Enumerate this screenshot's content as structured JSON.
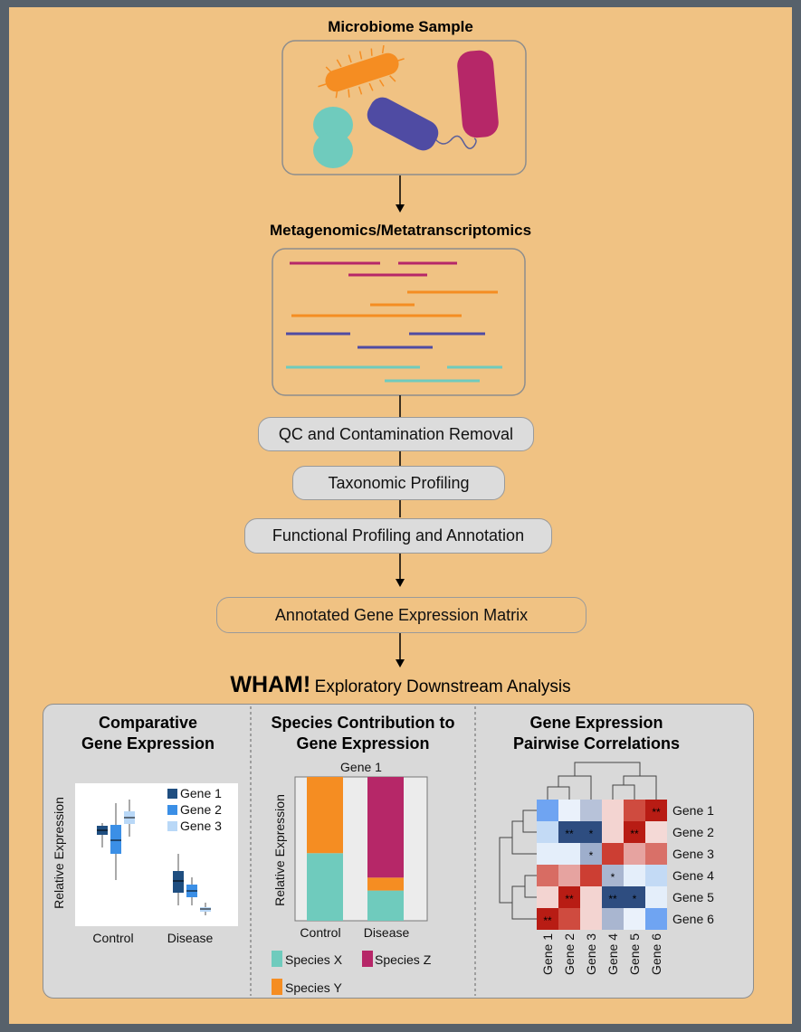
{
  "titles": {
    "sample": "Microbiome Sample",
    "sequencing": "Metagenomics/Metatranscriptomics",
    "wham": "WHAM!",
    "wham_subtitle": "Exploratory Downstream Analysis"
  },
  "steps": {
    "qc": "QC and Contamination Removal",
    "taxonomic": "Taxonomic Profiling",
    "functional": "Functional Profiling and Annotation",
    "matrix": "Annotated Gene Expression Matrix"
  },
  "panels": {
    "comparative": {
      "title_line1": "Comparative",
      "title_line2": "Gene Expression",
      "ylabel": "Relative Expression",
      "groups": [
        "Control",
        "Disease"
      ],
      "legend": [
        "Gene 1",
        "Gene 2",
        "Gene 3"
      ]
    },
    "species": {
      "title_line1": "Species Contribution to",
      "title_line2": "Gene Expression",
      "chart_title": "Gene 1",
      "ylabel": "Relative Expression",
      "groups": [
        "Control",
        "Disease"
      ],
      "legend": [
        "Species X",
        "Species Z",
        "Species Y"
      ]
    },
    "correlation": {
      "title_line1": "Gene Expression",
      "title_line2": "Pairwise Correlations",
      "genes": [
        "Gene 1",
        "Gene 2",
        "Gene 3",
        "Gene 4",
        "Gene 5",
        "Gene 6"
      ]
    }
  },
  "colors": {
    "background": "#f0c283",
    "frame": "#57616b",
    "gene1": "#1f4e80",
    "gene2": "#3b8fe6",
    "gene3": "#b9d8f7",
    "species_x": "#6fcbbd",
    "species_y": "#f58d22",
    "species_z": "#b62768"
  },
  "chart_data": {
    "type": "bar",
    "title": "Gene 1",
    "categories": [
      "Control",
      "Disease"
    ],
    "series": [
      {
        "name": "Species X",
        "values": [
          0.47,
          0.21
        ]
      },
      {
        "name": "Species Y",
        "values": [
          0.53,
          0.09
        ]
      },
      {
        "name": "Species Z",
        "values": [
          0,
          0.7
        ]
      }
    ],
    "ylabel": "Relative Expression",
    "ylim": [
      0,
      1
    ]
  }
}
